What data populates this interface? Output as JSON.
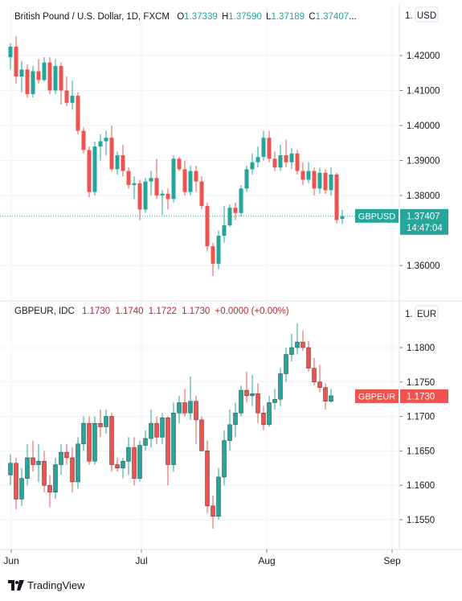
{
  "colors": {
    "up": "#26a69a",
    "down": "#ef5350",
    "grid": "#f0f3fa",
    "axis_text": "#131722",
    "border": "#e0e3eb"
  },
  "branding": {
    "text": "TradingView",
    "icon": "tradingview-logo-icon"
  },
  "chart_data": [
    {
      "type": "candlestick",
      "symbol": "GBPUSD",
      "title": "British Pound / U.S. Dollar, 1D, FXCM",
      "ohlc_labels": {
        "o_label": "O",
        "o": "1.37339",
        "h_label": "H",
        "h": "1.37590",
        "l_label": "L",
        "l": "1.37189",
        "c_label": "C",
        "c": "1.37407",
        "more": "..."
      },
      "currency": "USD",
      "ylim": [
        1.353,
        1.43
      ],
      "yticks": [
        "1.42000",
        "1.41000",
        "1.40000",
        "1.39000",
        "1.38000",
        "1.36000"
      ],
      "last_price_label": {
        "symbol": "GBPUSD",
        "price": "1.37407",
        "countdown": "14:47:04",
        "value": 1.37407
      },
      "candles": [
        {
          "o": 1.4195,
          "h": 1.4235,
          "l": 1.416,
          "c": 1.4225
        },
        {
          "o": 1.4225,
          "h": 1.4255,
          "l": 1.412,
          "c": 1.414
        },
        {
          "o": 1.414,
          "h": 1.4185,
          "l": 1.4095,
          "c": 1.416
        },
        {
          "o": 1.416,
          "h": 1.4175,
          "l": 1.408,
          "c": 1.409
        },
        {
          "o": 1.409,
          "h": 1.417,
          "l": 1.408,
          "c": 1.4155
        },
        {
          "o": 1.4155,
          "h": 1.419,
          "l": 1.412,
          "c": 1.413
        },
        {
          "o": 1.413,
          "h": 1.4195,
          "l": 1.4125,
          "c": 1.418
        },
        {
          "o": 1.418,
          "h": 1.4195,
          "l": 1.409,
          "c": 1.41
        },
        {
          "o": 1.41,
          "h": 1.419,
          "l": 1.409,
          "c": 1.417
        },
        {
          "o": 1.417,
          "h": 1.418,
          "l": 1.406,
          "c": 1.41
        },
        {
          "o": 1.41,
          "h": 1.414,
          "l": 1.4055,
          "c": 1.4065
        },
        {
          "o": 1.4065,
          "h": 1.4128,
          "l": 1.4045,
          "c": 1.4085
        },
        {
          "o": 1.4085,
          "h": 1.4095,
          "l": 1.3975,
          "c": 1.3985
        },
        {
          "o": 1.3985,
          "h": 1.3995,
          "l": 1.392,
          "c": 1.393
        },
        {
          "o": 1.393,
          "h": 1.394,
          "l": 1.3795,
          "c": 1.381
        },
        {
          "o": 1.381,
          "h": 1.3955,
          "l": 1.38,
          "c": 1.394
        },
        {
          "o": 1.394,
          "h": 1.3975,
          "l": 1.39,
          "c": 1.3955
        },
        {
          "o": 1.3955,
          "h": 1.3985,
          "l": 1.3915,
          "c": 1.3965
        },
        {
          "o": 1.3965,
          "h": 1.4,
          "l": 1.387,
          "c": 1.3875
        },
        {
          "o": 1.3875,
          "h": 1.3925,
          "l": 1.386,
          "c": 1.3915
        },
        {
          "o": 1.3915,
          "h": 1.3945,
          "l": 1.3855,
          "c": 1.387
        },
        {
          "o": 1.387,
          "h": 1.388,
          "l": 1.382,
          "c": 1.383
        },
        {
          "o": 1.383,
          "h": 1.3855,
          "l": 1.379,
          "c": 1.3835
        },
        {
          "o": 1.3835,
          "h": 1.3845,
          "l": 1.373,
          "c": 1.376
        },
        {
          "o": 1.376,
          "h": 1.385,
          "l": 1.375,
          "c": 1.384
        },
        {
          "o": 1.384,
          "h": 1.387,
          "l": 1.38,
          "c": 1.385
        },
        {
          "o": 1.385,
          "h": 1.3905,
          "l": 1.379,
          "c": 1.38
        },
        {
          "o": 1.38,
          "h": 1.3815,
          "l": 1.3745,
          "c": 1.3805
        },
        {
          "o": 1.3805,
          "h": 1.382,
          "l": 1.376,
          "c": 1.379
        },
        {
          "o": 1.379,
          "h": 1.3915,
          "l": 1.378,
          "c": 1.3905
        },
        {
          "o": 1.3905,
          "h": 1.391,
          "l": 1.387,
          "c": 1.3875
        },
        {
          "o": 1.3875,
          "h": 1.39,
          "l": 1.38,
          "c": 1.381
        },
        {
          "o": 1.381,
          "h": 1.3885,
          "l": 1.38,
          "c": 1.387
        },
        {
          "o": 1.387,
          "h": 1.3885,
          "l": 1.381,
          "c": 1.384
        },
        {
          "o": 1.384,
          "h": 1.3855,
          "l": 1.376,
          "c": 1.377
        },
        {
          "o": 1.377,
          "h": 1.378,
          "l": 1.364,
          "c": 1.3655
        },
        {
          "o": 1.3655,
          "h": 1.3665,
          "l": 1.357,
          "c": 1.3605
        },
        {
          "o": 1.3605,
          "h": 1.37,
          "l": 1.359,
          "c": 1.3685
        },
        {
          "o": 1.3685,
          "h": 1.377,
          "l": 1.3665,
          "c": 1.3715
        },
        {
          "o": 1.3715,
          "h": 1.3775,
          "l": 1.371,
          "c": 1.3765
        },
        {
          "o": 1.3765,
          "h": 1.378,
          "l": 1.373,
          "c": 1.375
        },
        {
          "o": 1.375,
          "h": 1.383,
          "l": 1.374,
          "c": 1.382
        },
        {
          "o": 1.382,
          "h": 1.3885,
          "l": 1.381,
          "c": 1.3875
        },
        {
          "o": 1.3875,
          "h": 1.392,
          "l": 1.386,
          "c": 1.3895
        },
        {
          "o": 1.3895,
          "h": 1.394,
          "l": 1.388,
          "c": 1.391
        },
        {
          "o": 1.391,
          "h": 1.3985,
          "l": 1.39,
          "c": 1.3965
        },
        {
          "o": 1.3965,
          "h": 1.3985,
          "l": 1.3895,
          "c": 1.3905
        },
        {
          "o": 1.3905,
          "h": 1.3925,
          "l": 1.387,
          "c": 1.388
        },
        {
          "o": 1.388,
          "h": 1.3945,
          "l": 1.387,
          "c": 1.3915
        },
        {
          "o": 1.3915,
          "h": 1.396,
          "l": 1.388,
          "c": 1.3895
        },
        {
          "o": 1.3895,
          "h": 1.3935,
          "l": 1.3875,
          "c": 1.392
        },
        {
          "o": 1.392,
          "h": 1.393,
          "l": 1.386,
          "c": 1.387
        },
        {
          "o": 1.387,
          "h": 1.3895,
          "l": 1.383,
          "c": 1.3845
        },
        {
          "o": 1.3845,
          "h": 1.3895,
          "l": 1.3835,
          "c": 1.387
        },
        {
          "o": 1.387,
          "h": 1.388,
          "l": 1.38,
          "c": 1.382
        },
        {
          "o": 1.382,
          "h": 1.388,
          "l": 1.3805,
          "c": 1.3865
        },
        {
          "o": 1.3865,
          "h": 1.3875,
          "l": 1.3805,
          "c": 1.3815
        },
        {
          "o": 1.3815,
          "h": 1.388,
          "l": 1.38,
          "c": 1.386
        },
        {
          "o": 1.386,
          "h": 1.3865,
          "l": 1.372,
          "c": 1.373
        },
        {
          "o": 1.3733,
          "h": 1.3759,
          "l": 1.3719,
          "c": 1.3741
        }
      ]
    },
    {
      "type": "candlestick",
      "symbol": "GBPEUR",
      "title": "GBPEUR, IDC",
      "ohlc_values": [
        "1.1730",
        "1.1740",
        "1.1722",
        "1.1730",
        "+0.0000 (+0.00%)"
      ],
      "currency": "EUR",
      "ylim": [
        1.152,
        1.1845
      ],
      "yticks": [
        "1.1800",
        "1.1750",
        "1.1700",
        "1.1650",
        "1.1600",
        "1.1550"
      ],
      "last_price_label": {
        "symbol": "GBPEUR",
        "price": "1.1730",
        "value": 1.173
      },
      "candles": [
        {
          "o": 1.1615,
          "h": 1.1645,
          "l": 1.16,
          "c": 1.1632
        },
        {
          "o": 1.1632,
          "h": 1.164,
          "l": 1.1565,
          "c": 1.158
        },
        {
          "o": 1.158,
          "h": 1.1625,
          "l": 1.157,
          "c": 1.161
        },
        {
          "o": 1.161,
          "h": 1.166,
          "l": 1.16,
          "c": 1.164
        },
        {
          "o": 1.164,
          "h": 1.1665,
          "l": 1.162,
          "c": 1.163
        },
        {
          "o": 1.163,
          "h": 1.166,
          "l": 1.1605,
          "c": 1.1635
        },
        {
          "o": 1.1635,
          "h": 1.165,
          "l": 1.159,
          "c": 1.16
        },
        {
          "o": 1.16,
          "h": 1.1615,
          "l": 1.1568,
          "c": 1.159
        },
        {
          "o": 1.159,
          "h": 1.164,
          "l": 1.158,
          "c": 1.163
        },
        {
          "o": 1.163,
          "h": 1.166,
          "l": 1.1615,
          "c": 1.1648
        },
        {
          "o": 1.1648,
          "h": 1.166,
          "l": 1.163,
          "c": 1.164
        },
        {
          "o": 1.164,
          "h": 1.1655,
          "l": 1.159,
          "c": 1.1605
        },
        {
          "o": 1.1605,
          "h": 1.167,
          "l": 1.1595,
          "c": 1.166
        },
        {
          "o": 1.166,
          "h": 1.17,
          "l": 1.165,
          "c": 1.169
        },
        {
          "o": 1.169,
          "h": 1.17,
          "l": 1.163,
          "c": 1.1635
        },
        {
          "o": 1.1635,
          "h": 1.17,
          "l": 1.163,
          "c": 1.169
        },
        {
          "o": 1.169,
          "h": 1.171,
          "l": 1.167,
          "c": 1.1685
        },
        {
          "o": 1.1685,
          "h": 1.171,
          "l": 1.1675,
          "c": 1.17
        },
        {
          "o": 1.17,
          "h": 1.1705,
          "l": 1.162,
          "c": 1.163
        },
        {
          "o": 1.163,
          "h": 1.164,
          "l": 1.162,
          "c": 1.1625
        },
        {
          "o": 1.1625,
          "h": 1.164,
          "l": 1.161,
          "c": 1.1635
        },
        {
          "o": 1.1635,
          "h": 1.167,
          "l": 1.1615,
          "c": 1.1655
        },
        {
          "o": 1.1655,
          "h": 1.167,
          "l": 1.16,
          "c": 1.161
        },
        {
          "o": 1.161,
          "h": 1.1665,
          "l": 1.1605,
          "c": 1.1658
        },
        {
          "o": 1.1658,
          "h": 1.168,
          "l": 1.165,
          "c": 1.1668
        },
        {
          "o": 1.1668,
          "h": 1.171,
          "l": 1.1655,
          "c": 1.169
        },
        {
          "o": 1.169,
          "h": 1.17,
          "l": 1.166,
          "c": 1.167
        },
        {
          "o": 1.167,
          "h": 1.1705,
          "l": 1.166,
          "c": 1.1698
        },
        {
          "o": 1.1698,
          "h": 1.17,
          "l": 1.16,
          "c": 1.163
        },
        {
          "o": 1.163,
          "h": 1.172,
          "l": 1.162,
          "c": 1.1705
        },
        {
          "o": 1.1705,
          "h": 1.173,
          "l": 1.169,
          "c": 1.172
        },
        {
          "o": 1.172,
          "h": 1.174,
          "l": 1.17,
          "c": 1.1705
        },
        {
          "o": 1.1705,
          "h": 1.1758,
          "l": 1.1695,
          "c": 1.1722
        },
        {
          "o": 1.1722,
          "h": 1.173,
          "l": 1.166,
          "c": 1.1695
        },
        {
          "o": 1.1695,
          "h": 1.17,
          "l": 1.165,
          "c": 1.165
        },
        {
          "o": 1.165,
          "h": 1.1665,
          "l": 1.156,
          "c": 1.157
        },
        {
          "o": 1.157,
          "h": 1.1585,
          "l": 1.1537,
          "c": 1.1555
        },
        {
          "o": 1.1555,
          "h": 1.1625,
          "l": 1.155,
          "c": 1.1612
        },
        {
          "o": 1.1612,
          "h": 1.168,
          "l": 1.16,
          "c": 1.1665
        },
        {
          "o": 1.1665,
          "h": 1.171,
          "l": 1.165,
          "c": 1.1688
        },
        {
          "o": 1.1688,
          "h": 1.172,
          "l": 1.167,
          "c": 1.1705
        },
        {
          "o": 1.1705,
          "h": 1.1745,
          "l": 1.17,
          "c": 1.1738
        },
        {
          "o": 1.1738,
          "h": 1.1765,
          "l": 1.172,
          "c": 1.173
        },
        {
          "o": 1.173,
          "h": 1.176,
          "l": 1.1715,
          "c": 1.1733
        },
        {
          "o": 1.1733,
          "h": 1.1748,
          "l": 1.169,
          "c": 1.1705
        },
        {
          "o": 1.1705,
          "h": 1.1715,
          "l": 1.168,
          "c": 1.1688
        },
        {
          "o": 1.1688,
          "h": 1.173,
          "l": 1.1685,
          "c": 1.172
        },
        {
          "o": 1.172,
          "h": 1.174,
          "l": 1.171,
          "c": 1.1725
        },
        {
          "o": 1.1725,
          "h": 1.177,
          "l": 1.1715,
          "c": 1.1762
        },
        {
          "o": 1.1762,
          "h": 1.18,
          "l": 1.175,
          "c": 1.179
        },
        {
          "o": 1.179,
          "h": 1.182,
          "l": 1.178,
          "c": 1.18
        },
        {
          "o": 1.18,
          "h": 1.1835,
          "l": 1.179,
          "c": 1.1808
        },
        {
          "o": 1.1808,
          "h": 1.1825,
          "l": 1.1795,
          "c": 1.18
        },
        {
          "o": 1.18,
          "h": 1.181,
          "l": 1.1765,
          "c": 1.177
        },
        {
          "o": 1.177,
          "h": 1.1785,
          "l": 1.1745,
          "c": 1.175
        },
        {
          "o": 1.175,
          "h": 1.1775,
          "l": 1.1735,
          "c": 1.1742
        },
        {
          "o": 1.1742,
          "h": 1.1748,
          "l": 1.171,
          "c": 1.1722
        },
        {
          "o": 1.1722,
          "h": 1.174,
          "l": 1.172,
          "c": 1.173
        }
      ]
    }
  ],
  "x_axis": {
    "labels": [
      "Jun",
      "Jul",
      "Aug",
      "Sep"
    ]
  }
}
